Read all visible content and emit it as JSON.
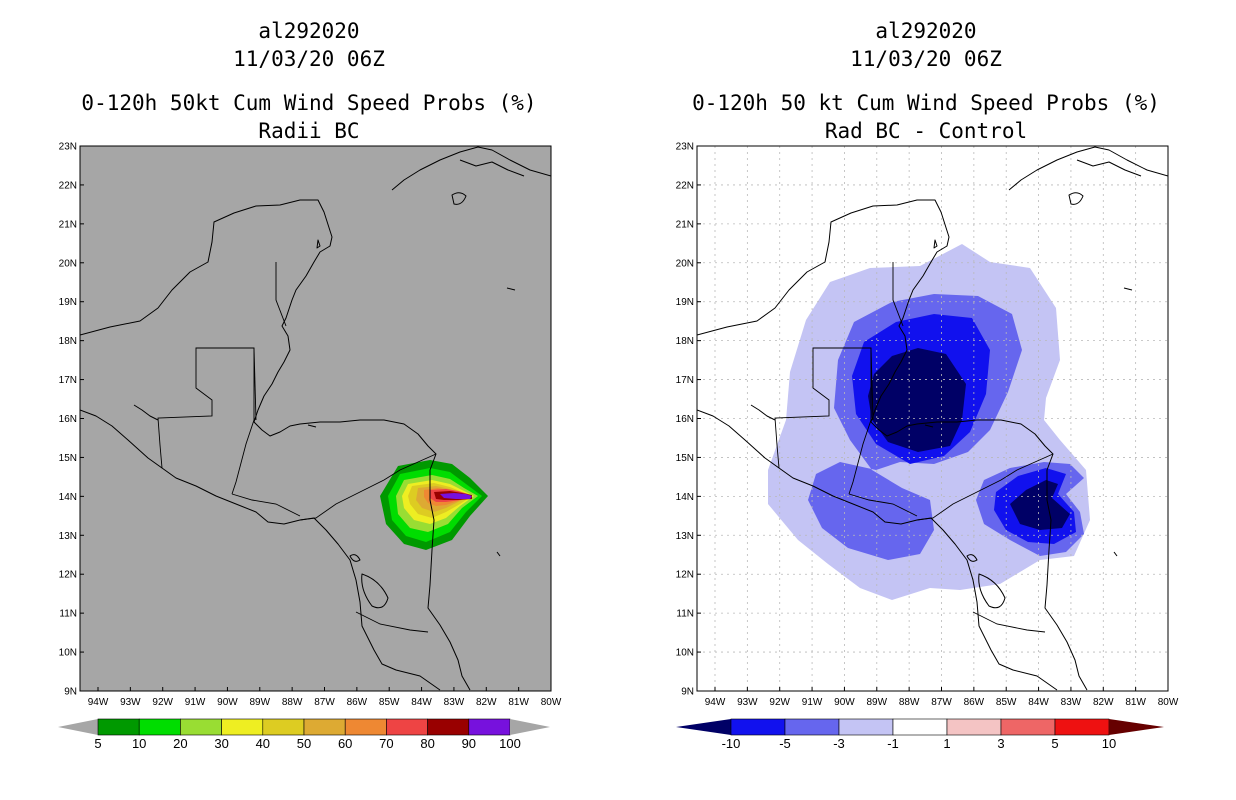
{
  "left": {
    "title_lines": [
      "al292020",
      "11/03/20 06Z",
      "0-120h 50kt Cum Wind Speed Probs (%)",
      "Radii BC"
    ],
    "background": "#a6a6a6",
    "lat_labels": [
      "23N",
      "22N",
      "21N",
      "20N",
      "19N",
      "18N",
      "17N",
      "16N",
      "15N",
      "14N",
      "13N",
      "12N",
      "11N",
      "10N",
      "9N"
    ],
    "lon_labels": [
      "94W",
      "93W",
      "92W",
      "91W",
      "90W",
      "89W",
      "88W",
      "87W",
      "86W",
      "85W",
      "84W",
      "83W",
      "82W",
      "81W",
      "80W"
    ],
    "colorbar": {
      "colors": [
        "#009900",
        "#00dd00",
        "#99dd33",
        "#eeee22",
        "#ddcc22",
        "#ddaa33",
        "#ee8833",
        "#ee4444",
        "#990000",
        "#7711dd"
      ],
      "labels": [
        "5",
        "10",
        "20",
        "30",
        "40",
        "50",
        "60",
        "70",
        "80",
        "90",
        "100"
      ]
    }
  },
  "right": {
    "title_lines": [
      "al292020",
      "11/03/20 06Z",
      "0-120h 50 kt Cum Wind Speed Probs (%)",
      "Rad BC - Control"
    ],
    "background": "#ffffff",
    "lat_labels": [
      "23N",
      "22N",
      "21N",
      "20N",
      "19N",
      "18N",
      "17N",
      "16N",
      "15N",
      "14N",
      "13N",
      "12N",
      "11N",
      "10N",
      "9N"
    ],
    "lon_labels": [
      "94W",
      "93W",
      "92W",
      "91W",
      "90W",
      "89W",
      "88W",
      "87W",
      "86W",
      "85W",
      "84W",
      "83W",
      "82W",
      "81W",
      "80W"
    ],
    "colorbar": {
      "colors": [
        "#000066",
        "#1111ee",
        "#6666ee",
        "#c4c4f4",
        "#ffffff",
        "#f4c4c4",
        "#ee6666",
        "#ee1111",
        "#660000"
      ],
      "labels": [
        "-10",
        "-5",
        "-3",
        "-1",
        "1",
        "3",
        "5",
        "10"
      ]
    }
  }
}
